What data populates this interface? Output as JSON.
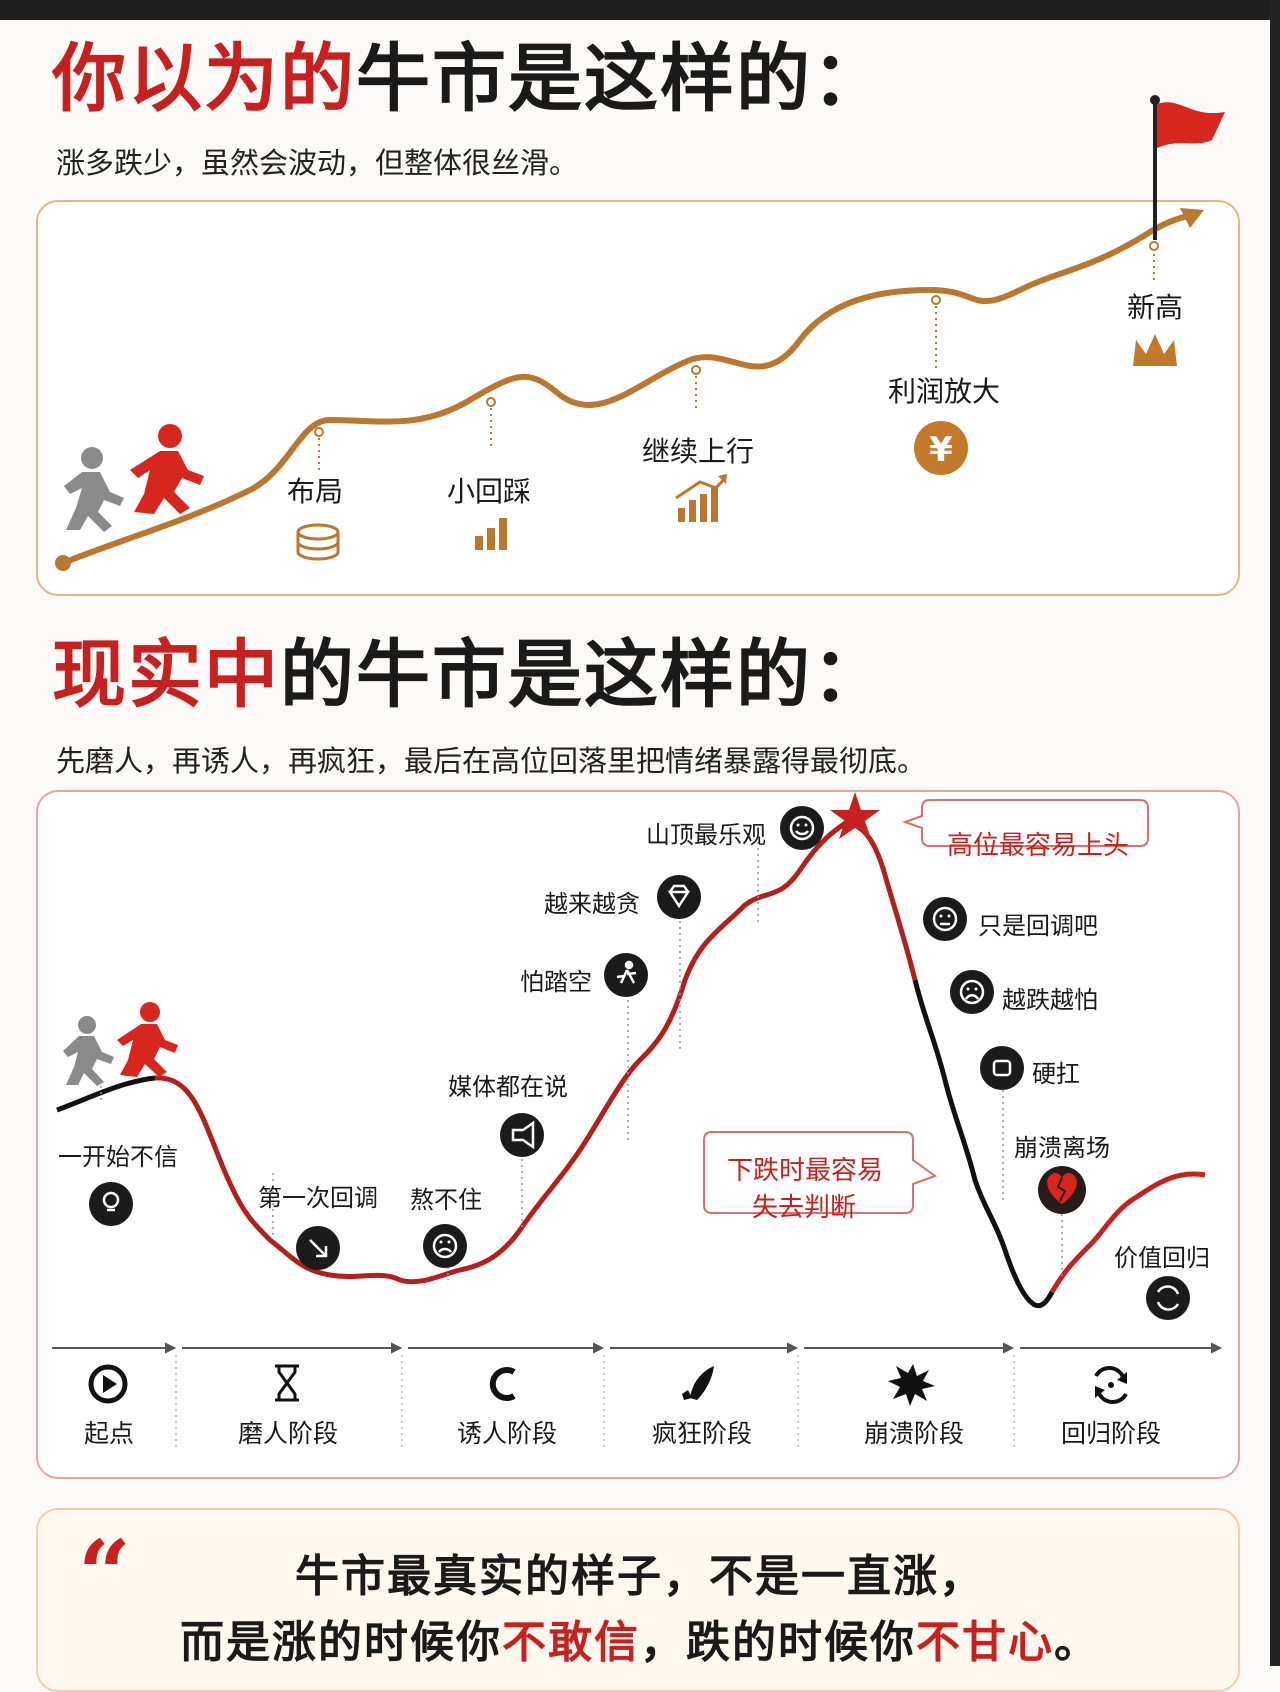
{
  "section1": {
    "title_red": "你以为的",
    "title_black": "牛市是这样的：",
    "subtitle": "涨多跌少，虽然会波动，但整体很丝滑。",
    "milestones": [
      {
        "label": "布局",
        "icon": "coin-stack-icon"
      },
      {
        "label": "小回踩",
        "icon": "bar-chart-icon"
      },
      {
        "label": "继续上行",
        "icon": "rising-chart-icon"
      },
      {
        "label": "利润放大",
        "icon": "yen-coin-icon"
      },
      {
        "label": "新高",
        "icon": "crown-icon"
      }
    ]
  },
  "section2": {
    "title_red": "现实中",
    "title_black": "的牛市是这样的：",
    "subtitle": "先磨人，再诱人，再疯狂，最后在高位回落里把情绪暴露得最彻底。",
    "emotions": [
      {
        "label": "一开始不信",
        "icon": "lightbulb-icon"
      },
      {
        "label": "第一次回调",
        "icon": "arrow-down-right-icon"
      },
      {
        "label": "熬不住",
        "icon": "sad-face-icon"
      },
      {
        "label": "媒体都在说",
        "icon": "megaphone-icon"
      },
      {
        "label": "怕踏空",
        "icon": "running-icon"
      },
      {
        "label": "越来越贪",
        "icon": "diamond-icon"
      },
      {
        "label": "山顶最乐观",
        "icon": "smile-face-icon"
      },
      {
        "label": "只是回调吧",
        "icon": "neutral-face-icon"
      },
      {
        "label": "越跌越怕",
        "icon": "worried-face-icon"
      },
      {
        "label": "硬扛",
        "icon": "fist-icon"
      },
      {
        "label": "崩溃离场",
        "icon": "broken-heart-icon"
      },
      {
        "label": "价值回归",
        "icon": "cycle-icon"
      }
    ],
    "callout_top": "高位最容易上头",
    "callout_mid_line1": "下跌时最容易",
    "callout_mid_line2": "失去判断",
    "stages": [
      {
        "label": "起点",
        "icon": "play-icon"
      },
      {
        "label": "磨人阶段",
        "icon": "hourglass-icon"
      },
      {
        "label": "诱人阶段",
        "icon": "magnet-icon"
      },
      {
        "label": "疯狂阶段",
        "icon": "rocket-icon"
      },
      {
        "label": "崩溃阶段",
        "icon": "explosion-icon"
      },
      {
        "label": "回归阶段",
        "icon": "refresh-icon"
      }
    ]
  },
  "quote": {
    "line1": "牛市最真实的样子，不是一直涨，",
    "line2_a": "而是涨的时候你",
    "line2_red1": "不敢信",
    "line2_b": "，跌的时候你",
    "line2_red2": "不甘心",
    "line2_c": "。"
  },
  "colors": {
    "accent_red": "#c8201e",
    "gold": "#b9772f",
    "dark": "#1a1a1a"
  }
}
